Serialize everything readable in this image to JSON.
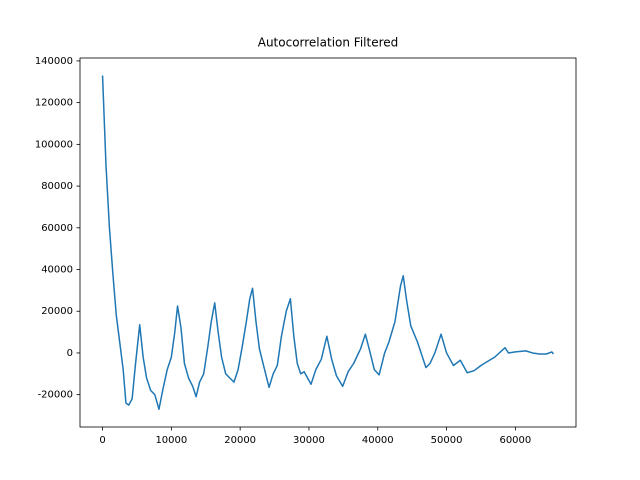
{
  "chart_data": {
    "type": "line",
    "title": "Autocorrelation Filtered",
    "color": "#1f77b4",
    "x": [
      0,
      500,
      1000,
      1500,
      2000,
      2500,
      3000,
      3400,
      3800,
      4300,
      4800,
      5400,
      5900,
      6400,
      7000,
      7600,
      8200,
      8800,
      9400,
      10000,
      10500,
      10900,
      11400,
      11900,
      12500,
      13100,
      13600,
      14100,
      14700,
      15300,
      15800,
      16300,
      16800,
      17300,
      17900,
      18500,
      19100,
      19700,
      20300,
      20900,
      21400,
      21800,
      22300,
      22800,
      23400,
      24200,
      24800,
      25400,
      26000,
      26700,
      27300,
      27800,
      28300,
      28800,
      29300,
      29800,
      30300,
      31000,
      31800,
      32600,
      33300,
      34000,
      34900,
      35700,
      36500,
      37500,
      38200,
      38900,
      39500,
      40200,
      41000,
      41600,
      42500,
      43300,
      43700,
      44200,
      44800,
      45800,
      47000,
      47600,
      48300,
      49200,
      50000,
      51000,
      52000,
      53000,
      54000,
      55000,
      56000,
      57000,
      58500,
      59000,
      60000,
      61500,
      62500,
      63500,
      64500,
      65300,
      65536
    ],
    "values": [
      133000,
      90000,
      60000,
      38000,
      18000,
      5000,
      -8000,
      -24000,
      -25000,
      -22000,
      -5000,
      13500,
      -2000,
      -12000,
      -18000,
      -20000,
      -27000,
      -17000,
      -8000,
      -2000,
      10000,
      22500,
      12000,
      -5000,
      -12000,
      -16000,
      -21000,
      -14000,
      -10000,
      3000,
      15000,
      24000,
      10000,
      -2000,
      -10000,
      -12000,
      -14000,
      -8000,
      3000,
      15000,
      26000,
      31000,
      15000,
      2000,
      -6000,
      -16500,
      -10000,
      -6000,
      8000,
      20000,
      26000,
      8000,
      -5000,
      -10000,
      -9000,
      -12000,
      -15000,
      -8000,
      -3000,
      8000,
      -3000,
      -11000,
      -16000,
      -9000,
      -5000,
      2000,
      9000,
      0,
      -8000,
      -10500,
      0,
      5000,
      15000,
      32000,
      37000,
      25000,
      13000,
      5000,
      -7000,
      -5000,
      0,
      9000,
      0,
      -6000,
      -3500,
      -9500,
      -8500,
      -6000,
      -4000,
      -2000,
      2500,
      0,
      500,
      1000,
      0,
      -500,
      -500,
      500,
      -500
    ],
    "xlim": [
      -3277,
      68813
    ],
    "ylim": [
      -35500,
      141400
    ],
    "xticks": [
      0,
      10000,
      20000,
      30000,
      40000,
      50000,
      60000
    ],
    "yticks": [
      -20000,
      0,
      20000,
      40000,
      60000,
      80000,
      100000,
      120000,
      140000
    ]
  }
}
